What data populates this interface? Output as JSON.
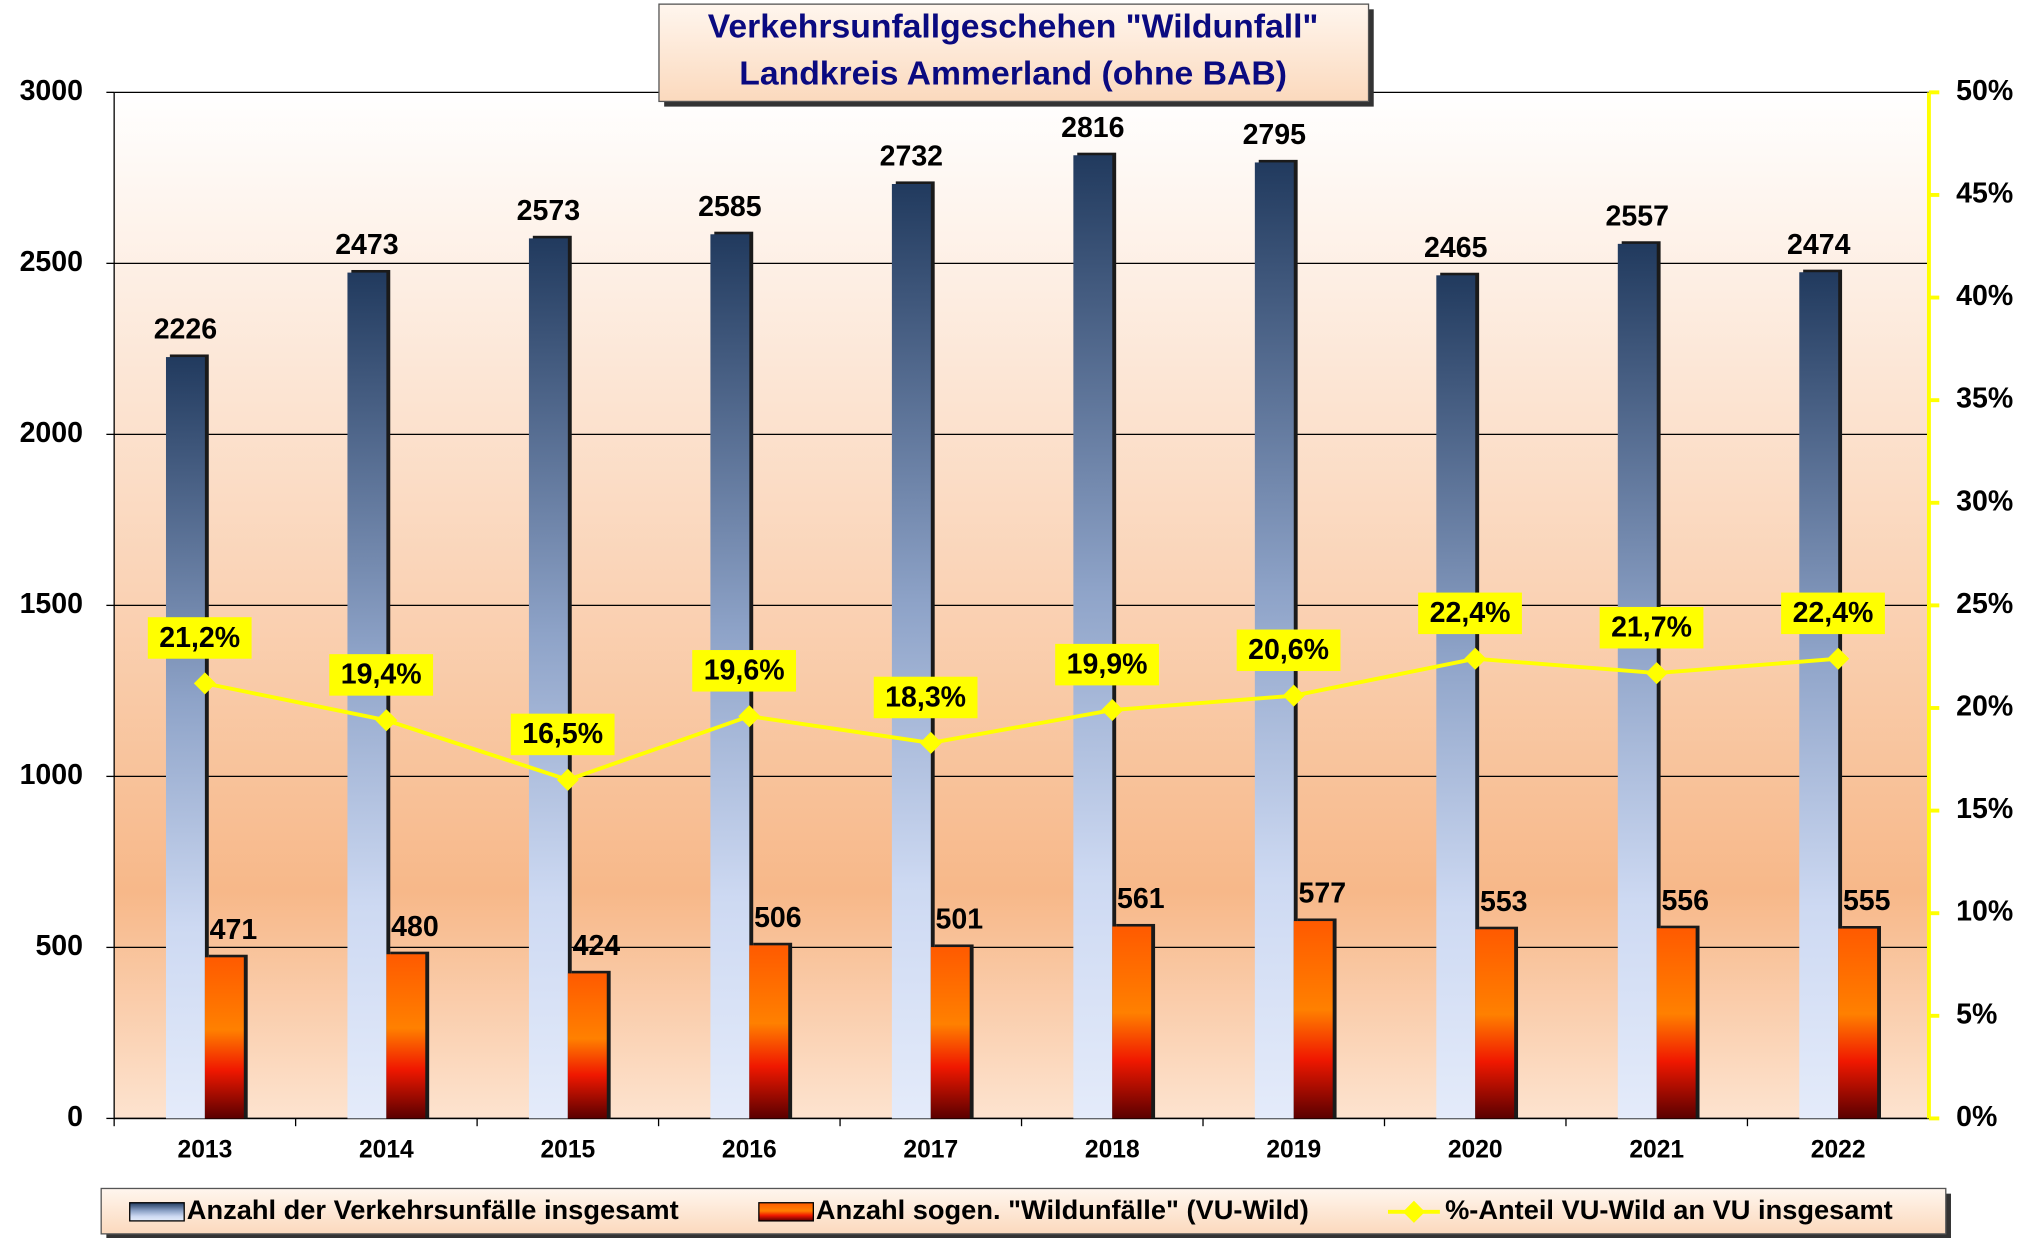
{
  "chart_data": {
    "type": "bar",
    "title": "Verkehrsunfallgeschehen \"Wildunfall\"",
    "subtitle": "Landkreis Ammerland (ohne BAB)",
    "categories": [
      "2013",
      "2014",
      "2015",
      "2016",
      "2017",
      "2018",
      "2019",
      "2020",
      "2021",
      "2022"
    ],
    "series": [
      {
        "name": "Anzahl der Verkehrsunfälle insgesamt",
        "color": "#7f95c0",
        "values": [
          2226,
          2473,
          2573,
          2585,
          2732,
          2816,
          2795,
          2465,
          2557,
          2474
        ]
      },
      {
        "name": "Anzahl sogen. \"Wildunfälle\" (VU-Wild)",
        "color": "#e82a00",
        "values": [
          471,
          480,
          424,
          506,
          501,
          561,
          577,
          553,
          556,
          555
        ]
      },
      {
        "name": "%-Anteil VU-Wild an VU insgesamt",
        "color": "#ffff00",
        "axis": "y2",
        "type": "line",
        "values": [
          21.2,
          19.4,
          16.5,
          19.6,
          18.3,
          19.9,
          20.6,
          22.4,
          21.7,
          22.4
        ],
        "value_labels": [
          "21,2%",
          "19,4%",
          "16,5%",
          "19,6%",
          "18,3%",
          "19,9%",
          "20,6%",
          "22,4%",
          "21,7%",
          "22,4%"
        ]
      }
    ],
    "ylim": [
      0,
      3000
    ],
    "yticks": [
      0,
      500,
      1000,
      1500,
      2000,
      2500,
      3000
    ],
    "y2lim": [
      0,
      50
    ],
    "y2ticks": [
      {
        "value": 0,
        "label": "0%"
      },
      {
        "value": 5,
        "label": "5%"
      },
      {
        "value": 10,
        "label": "10%"
      },
      {
        "value": 15,
        "label": "15%"
      },
      {
        "value": 20,
        "label": "20%"
      },
      {
        "value": 25,
        "label": "25%"
      },
      {
        "value": 30,
        "label": "30%"
      },
      {
        "value": 35,
        "label": "35%"
      },
      {
        "value": 40,
        "label": "40%"
      },
      {
        "value": 45,
        "label": "45%"
      },
      {
        "value": 50,
        "label": "50%"
      }
    ],
    "grid": true,
    "legend": "bottom"
  }
}
